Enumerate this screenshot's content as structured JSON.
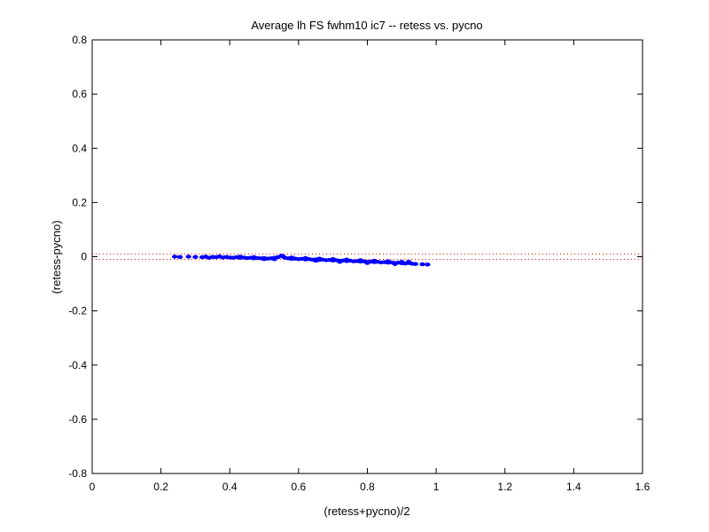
{
  "chart_data": {
    "type": "scatter",
    "title": "Average lh FS fwhm10 ic7 -- retess vs. pycno",
    "xlabel": "(retess+pycno)/2",
    "ylabel": "(retess-pycno)",
    "xlim": [
      0,
      1.6
    ],
    "ylim": [
      -0.8,
      0.8
    ],
    "xticks": [
      "0",
      "0.2",
      "0.4",
      "0.6",
      "0.8",
      "1",
      "1.2",
      "1.4",
      "1.6"
    ],
    "yticks": [
      "0.8",
      "0.6",
      "0.4",
      "0.2",
      "0",
      "-0.2",
      "-0.4",
      "-0.6",
      "-0.8"
    ],
    "grid": false,
    "reference_lines": [
      {
        "y": 0.01,
        "style": "dotted",
        "color": "#ff0000"
      },
      {
        "y": -0.01,
        "style": "dotted",
        "color": "#ff0000"
      }
    ],
    "series": [
      {
        "color": "#0000ff",
        "marker": "dot",
        "points": [
          [
            0.24,
            0.0
          ],
          [
            0.255,
            -0.001
          ],
          [
            0.28,
            0.0
          ],
          [
            0.3,
            -0.001
          ],
          [
            0.32,
            -0.002
          ],
          [
            0.33,
            0.0
          ],
          [
            0.35,
            -0.001
          ],
          [
            0.36,
            -0.002
          ],
          [
            0.38,
            -0.003
          ],
          [
            0.39,
            -0.001
          ],
          [
            0.4,
            -0.003
          ],
          [
            0.41,
            -0.004
          ],
          [
            0.42,
            -0.002
          ],
          [
            0.43,
            -0.004
          ],
          [
            0.44,
            -0.003
          ],
          [
            0.45,
            -0.005
          ],
          [
            0.46,
            -0.004
          ],
          [
            0.47,
            -0.006
          ],
          [
            0.48,
            -0.005
          ],
          [
            0.49,
            -0.006
          ],
          [
            0.5,
            -0.005
          ],
          [
            0.51,
            -0.007
          ],
          [
            0.52,
            -0.006
          ],
          [
            0.53,
            -0.004
          ],
          [
            0.54,
            -0.002
          ],
          [
            0.55,
            0.004
          ],
          [
            0.555,
            0.001
          ],
          [
            0.56,
            -0.004
          ],
          [
            0.57,
            -0.006
          ],
          [
            0.58,
            -0.008
          ],
          [
            0.59,
            -0.007
          ],
          [
            0.6,
            -0.009
          ],
          [
            0.61,
            -0.008
          ],
          [
            0.62,
            -0.01
          ],
          [
            0.63,
            -0.009
          ],
          [
            0.64,
            -0.011
          ],
          [
            0.65,
            -0.01
          ],
          [
            0.66,
            -0.012
          ],
          [
            0.67,
            -0.011
          ],
          [
            0.68,
            -0.013
          ],
          [
            0.69,
            -0.012
          ],
          [
            0.7,
            -0.014
          ],
          [
            0.71,
            -0.013
          ],
          [
            0.72,
            -0.015
          ],
          [
            0.73,
            -0.014
          ],
          [
            0.74,
            -0.016
          ],
          [
            0.75,
            -0.015
          ],
          [
            0.76,
            -0.017
          ],
          [
            0.77,
            -0.016
          ],
          [
            0.78,
            -0.018
          ],
          [
            0.79,
            -0.017
          ],
          [
            0.8,
            -0.019
          ],
          [
            0.81,
            -0.018
          ],
          [
            0.82,
            -0.02
          ],
          [
            0.83,
            -0.019
          ],
          [
            0.84,
            -0.021
          ],
          [
            0.85,
            -0.02
          ],
          [
            0.86,
            -0.022
          ],
          [
            0.87,
            -0.021
          ],
          [
            0.88,
            -0.023
          ],
          [
            0.89,
            -0.022
          ],
          [
            0.9,
            -0.024
          ],
          [
            0.91,
            -0.025
          ],
          [
            0.92,
            -0.023
          ],
          [
            0.93,
            -0.026
          ],
          [
            0.94,
            -0.027
          ],
          [
            0.96,
            -0.028
          ],
          [
            0.975,
            -0.029
          ],
          [
            0.34,
            -0.004
          ],
          [
            0.37,
            0.001
          ],
          [
            0.43,
            0.0
          ],
          [
            0.47,
            -0.002
          ],
          [
            0.5,
            -0.009
          ],
          [
            0.53,
            -0.009
          ],
          [
            0.58,
            -0.003
          ],
          [
            0.62,
            -0.005
          ],
          [
            0.66,
            -0.007
          ],
          [
            0.7,
            -0.009
          ],
          [
            0.74,
            -0.011
          ],
          [
            0.78,
            -0.013
          ],
          [
            0.82,
            -0.015
          ],
          [
            0.86,
            -0.017
          ],
          [
            0.9,
            -0.019
          ],
          [
            0.65,
            -0.015
          ],
          [
            0.72,
            -0.019
          ],
          [
            0.8,
            -0.023
          ],
          [
            0.88,
            -0.027
          ],
          [
            0.92,
            -0.019
          ]
        ]
      }
    ]
  }
}
